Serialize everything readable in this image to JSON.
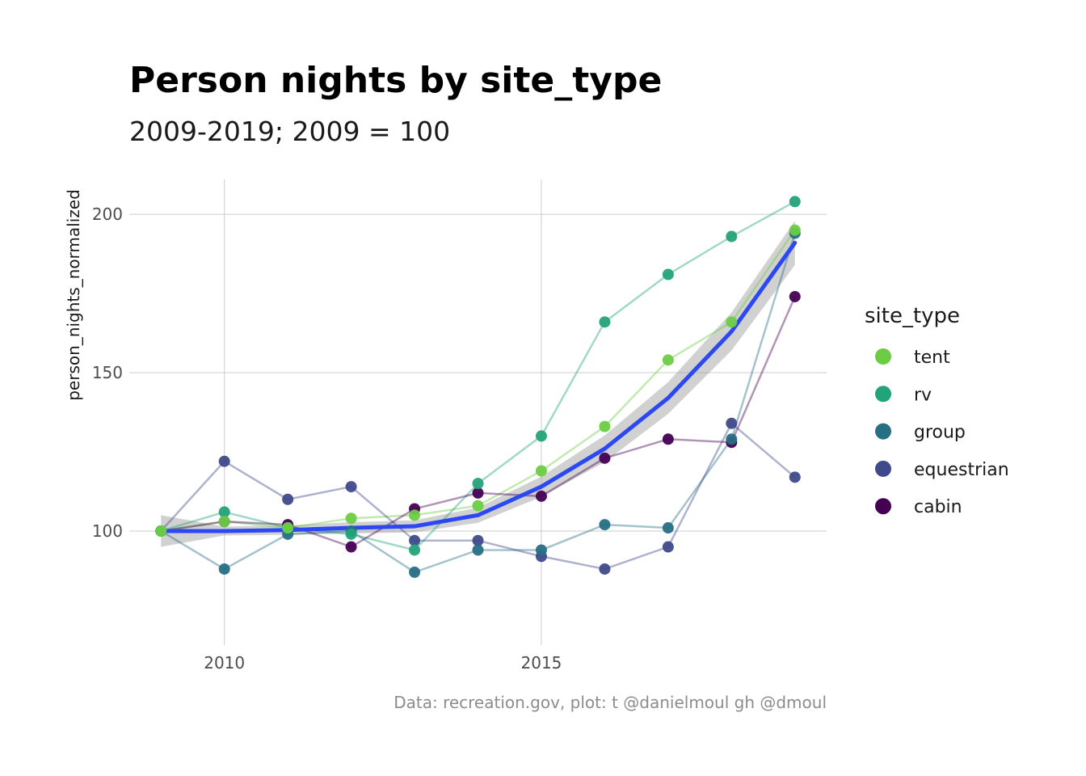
{
  "chart_data": {
    "type": "line",
    "title": "Person nights by site_type",
    "subtitle": "2009-2019; 2009 = 100",
    "xlabel": "",
    "ylabel": "person_nights_normalized",
    "caption": "Data: recreation.gov, plot: t @danielmoul gh @dmoul",
    "legend_title": "site_type",
    "legend_position": "right",
    "grid": true,
    "xlim": [
      2008.5,
      2019.5
    ],
    "ylim": [
      64,
      211
    ],
    "x_ticks": [
      2010,
      2015
    ],
    "y_ticks": [
      100,
      150,
      200
    ],
    "x": [
      2009,
      2010,
      2011,
      2012,
      2013,
      2014,
      2015,
      2016,
      2017,
      2018,
      2019
    ],
    "series": [
      {
        "name": "tent",
        "color": "#6BCD44",
        "values": [
          100,
          103,
          101,
          104,
          105,
          108,
          119,
          133,
          154,
          166,
          195
        ]
      },
      {
        "name": "rv",
        "color": "#22A37A",
        "values": [
          100,
          106,
          101,
          99,
          94,
          115,
          130,
          166,
          181,
          193,
          204
        ]
      },
      {
        "name": "group",
        "color": "#276F85",
        "values": [
          100,
          88,
          99,
          100,
          87,
          94,
          94,
          102,
          101,
          129,
          194
        ]
      },
      {
        "name": "equestrian",
        "color": "#3E4A89",
        "values": [
          100,
          122,
          110,
          114,
          97,
          97,
          92,
          88,
          95,
          134,
          117
        ]
      },
      {
        "name": "cabin",
        "color": "#440154",
        "values": [
          100,
          103,
          102,
          95,
          107,
          112,
          111,
          123,
          129,
          128,
          174
        ]
      }
    ],
    "smooth": {
      "color": "#2B48F2",
      "band_color": "#999999",
      "values": [
        100,
        100,
        100.3,
        101,
        101.5,
        105,
        114,
        126,
        142,
        163,
        191
      ],
      "lower": [
        95,
        98.6,
        98.8,
        99.2,
        99.6,
        102.6,
        110.8,
        121.8,
        137,
        157,
        184
      ],
      "upper": [
        105,
        101.4,
        101.8,
        102.8,
        103.4,
        107.4,
        117.2,
        130.2,
        147,
        169,
        198
      ]
    }
  }
}
